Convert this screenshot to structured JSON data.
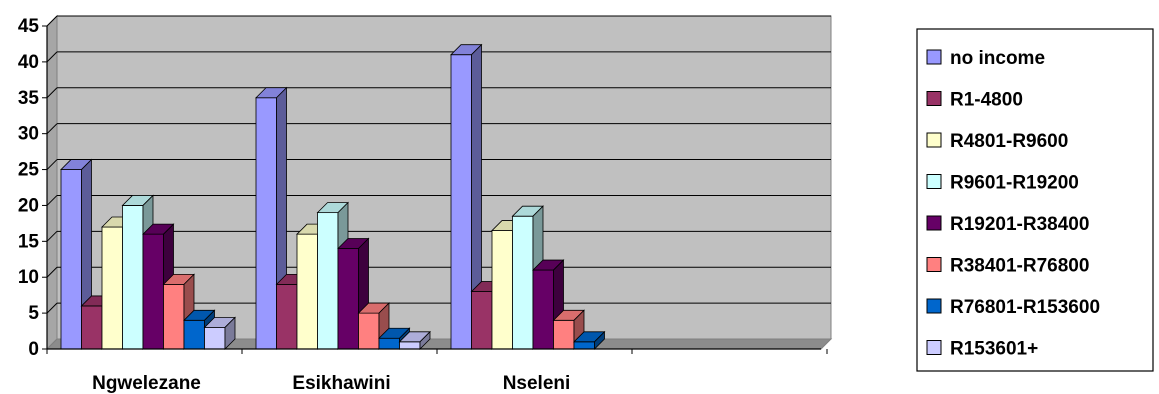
{
  "chart_data": {
    "type": "bar",
    "categories": [
      "Ngwelezane",
      "Esikhawini",
      "Nseleni"
    ],
    "series": [
      {
        "name": "no income",
        "values": [
          25,
          35,
          41
        ],
        "color": "#9999FF"
      },
      {
        "name": "R1-4800",
        "values": [
          6,
          9,
          8
        ],
        "color": "#993366"
      },
      {
        "name": "R4801-R9600",
        "values": [
          17,
          16,
          16.5
        ],
        "color": "#FFFFCC"
      },
      {
        "name": "R9601-R19200",
        "values": [
          20,
          19,
          18.5
        ],
        "color": "#CCFFFF"
      },
      {
        "name": "R19201-R38400",
        "values": [
          16,
          14,
          11
        ],
        "color": "#660066"
      },
      {
        "name": "R38401-R76800",
        "values": [
          9,
          5,
          4
        ],
        "color": "#FF8080"
      },
      {
        "name": "R76801-R153600",
        "values": [
          4,
          1.5,
          1
        ],
        "color": "#0066CC"
      },
      {
        "name": "R153601+",
        "values": [
          3,
          1,
          0
        ],
        "color": "#CCCCFF"
      }
    ],
    "ylim": [
      0,
      45
    ],
    "yticks": [
      "0",
      "5",
      "10",
      "15",
      "20",
      "25",
      "30",
      "35",
      "40",
      "45"
    ],
    "grid": true,
    "legend_position": "right",
    "plot_background": "#C0C0C0",
    "view": "3d-clustered-column"
  }
}
